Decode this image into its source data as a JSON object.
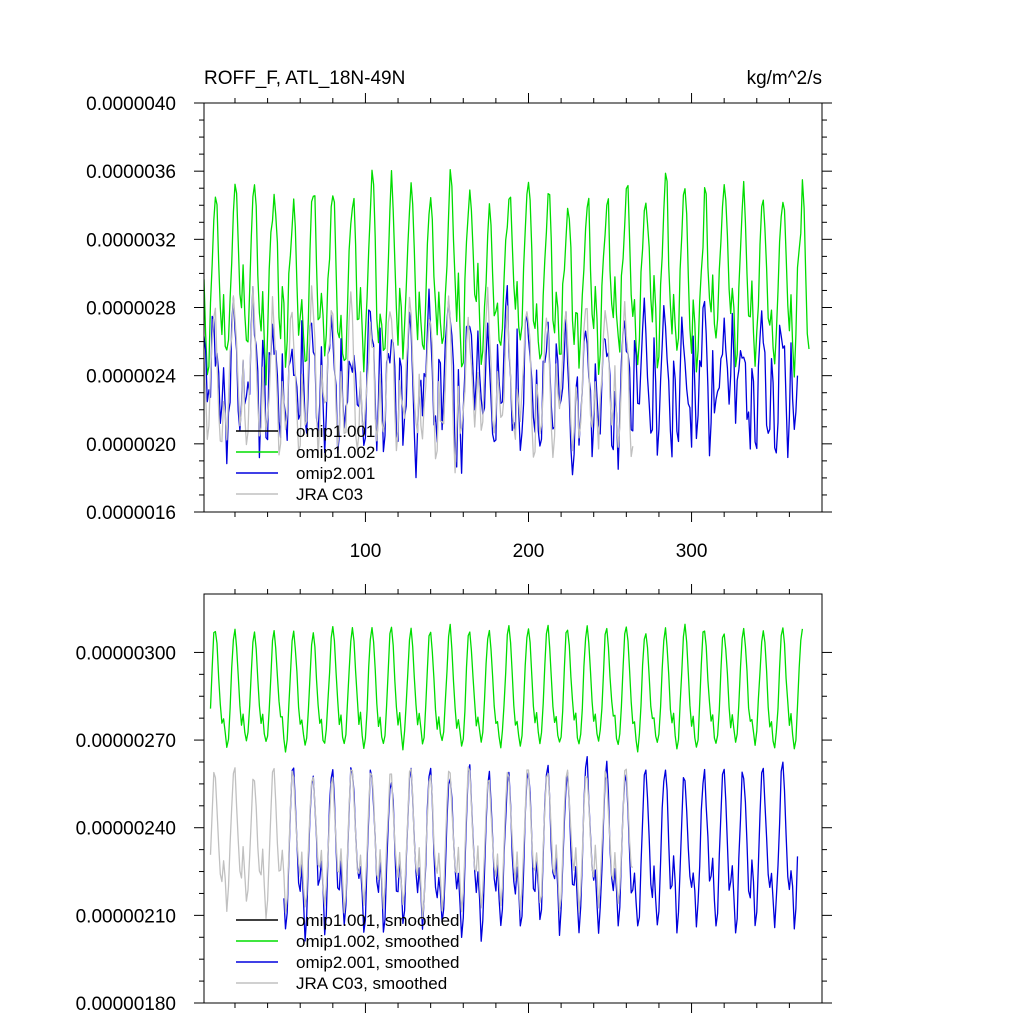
{
  "figure": {
    "title": "ROFF_F, ATL_18N-49N",
    "units": "kg/m^2/s"
  },
  "chart_data": [
    {
      "type": "line",
      "id": "top",
      "title": "ROFF_F, ATL_18N-49N",
      "units_label": "kg/m^2/s",
      "xlabel": "",
      "ylabel": "",
      "xlim": [
        1,
        380
      ],
      "ylim": [
        1.6e-06,
        4e-06
      ],
      "x_ticks": [
        100,
        200,
        300
      ],
      "x_tick_labels": [
        "100",
        "200",
        "300"
      ],
      "y_ticks": [
        1.6e-06,
        2e-06,
        2.4e-06,
        2.8e-06,
        3.2e-06,
        3.6e-06,
        4e-06
      ],
      "y_tick_labels": [
        "0.0000016",
        "0.0000020",
        "0.0000024",
        "0.0000028",
        "0.0000032",
        "0.0000036",
        "0.0000040"
      ],
      "legend": {
        "position": "bottom-left",
        "entries": [
          "omip1.001",
          "omip1.002",
          "omip2.001",
          "JRA C03"
        ]
      },
      "series": [
        {
          "name": "omip1.001",
          "color": "#000000",
          "x_start": 1,
          "x_end": 1,
          "annual_cycle": [],
          "values": []
        },
        {
          "name": "omip1.002",
          "color": "#00dd00",
          "x_start": 1,
          "x_end": 372,
          "annual_cycle": [
            2.9e-06,
            2.7e-06,
            2.5e-06,
            2.6e-06,
            2.9e-06,
            3.1e-06,
            3.3e-06,
            3.5e-06,
            3.4e-06,
            3.1e-06,
            2.8e-06,
            2.7e-06
          ],
          "noise_amplitude": 2e-07
        },
        {
          "name": "omip2.001",
          "color": "#0000dd",
          "x_start": 1,
          "x_end": 365,
          "annual_cycle": [
            2.5e-06,
            2.3e-06,
            2.1e-06,
            2.2e-06,
            2.4e-06,
            2.6e-06,
            2.7e-06,
            2.6e-06,
            2.4e-06,
            2.2e-06,
            2e-06,
            2.1e-06
          ],
          "noise_amplitude": 3.5e-07
        },
        {
          "name": "JRA C03",
          "color": "#c0c0c0",
          "x_start": 1,
          "x_end": 264,
          "annual_cycle": [
            2.4e-06,
            2.2e-06,
            2.1e-06,
            2.2e-06,
            2.4e-06,
            2.6e-06,
            2.8e-06,
            2.7e-06,
            2.5e-06,
            2.2e-06,
            2e-06,
            2.1e-06
          ],
          "noise_amplitude": 2e-07
        }
      ]
    },
    {
      "type": "line",
      "id": "bottom",
      "title": "",
      "xlabel": "",
      "ylabel": "",
      "xlim": [
        1,
        380
      ],
      "ylim": [
        1.8e-06,
        3.2e-06
      ],
      "x_ticks": [
        100,
        200,
        300
      ],
      "x_tick_labels": [],
      "y_ticks": [
        1.8e-06,
        2.1e-06,
        2.4e-06,
        2.7e-06,
        3e-06
      ],
      "y_tick_labels": [
        "0.00000180",
        "0.00000210",
        "0.00000240",
        "0.00000270",
        "0.00000300"
      ],
      "legend": {
        "position": "bottom-left",
        "entries": [
          "omip1.001, smoothed",
          "omip1.002, smoothed",
          "omip2.001, smoothed",
          "JRA C03, smoothed"
        ]
      },
      "series": [
        {
          "name": "omip1.001, smoothed",
          "color": "#000000",
          "x_start": 1,
          "x_end": 1,
          "annual_cycle": [],
          "values": []
        },
        {
          "name": "omip1.002, smoothed",
          "color": "#00dd00",
          "x_start": 5,
          "x_end": 368,
          "annual_cycle": [
            2.78e-06,
            2.72e-06,
            2.68e-06,
            2.72e-06,
            2.82e-06,
            2.94e-06,
            3.05e-06,
            3.08e-06,
            3.02e-06,
            2.92e-06,
            2.82e-06,
            2.76e-06
          ],
          "noise_amplitude": 3e-08
        },
        {
          "name": "omip2.001, smoothed",
          "color": "#0000dd",
          "x_start": 50,
          "x_end": 365,
          "annual_cycle": [
            2.28e-06,
            2.18e-06,
            2.05e-06,
            2.12e-06,
            2.28e-06,
            2.45e-06,
            2.58e-06,
            2.6e-06,
            2.5e-06,
            2.35e-06,
            2.22e-06,
            2.2e-06
          ],
          "noise_amplitude": 6e-08
        },
        {
          "name": "JRA C03, smoothed",
          "color": "#c0c0c0",
          "x_start": 5,
          "x_end": 264,
          "annual_cycle": [
            2.32e-06,
            2.22e-06,
            2.12e-06,
            2.18e-06,
            2.32e-06,
            2.46e-06,
            2.58e-06,
            2.58e-06,
            2.48e-06,
            2.36e-06,
            2.26e-06,
            2.24e-06
          ],
          "noise_amplitude": 4e-08
        }
      ]
    }
  ]
}
